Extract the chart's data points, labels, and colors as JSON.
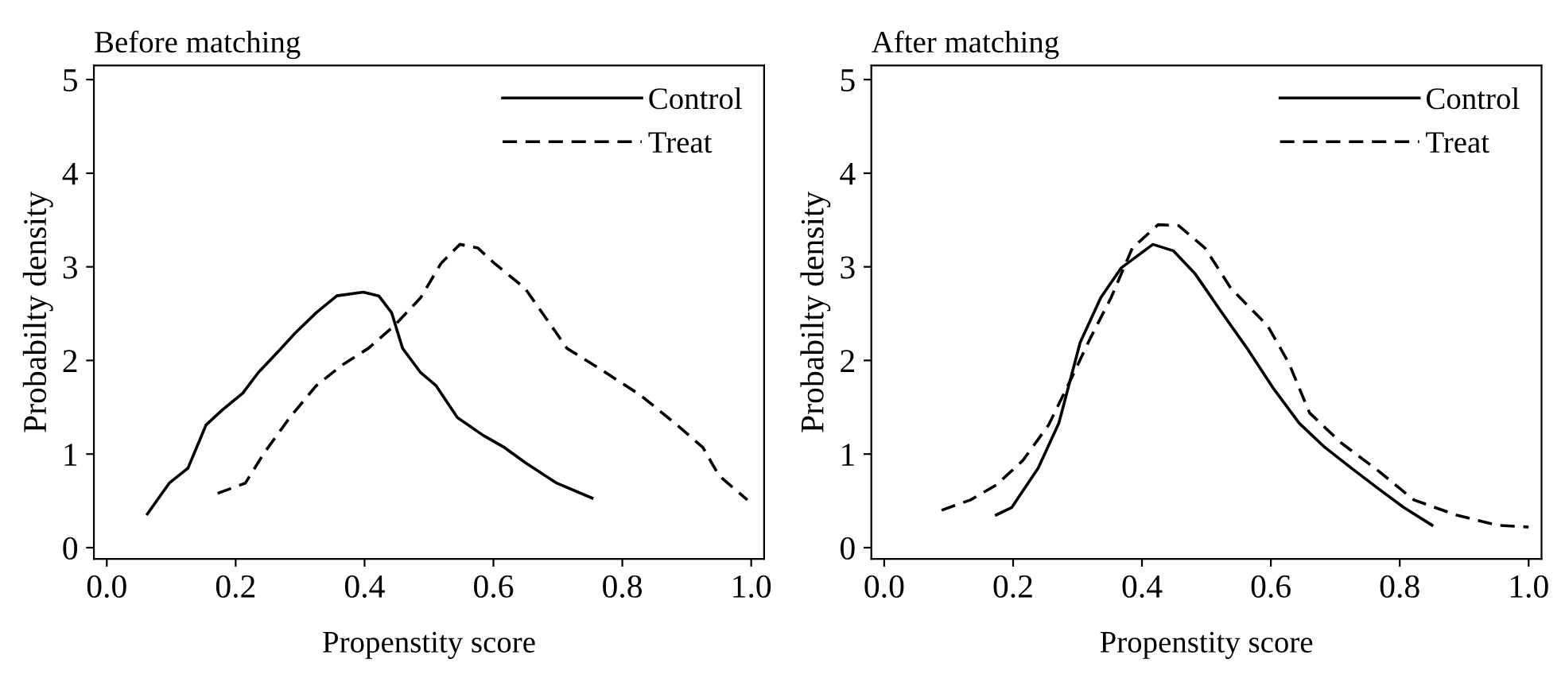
{
  "chart_data": [
    {
      "type": "line",
      "title": "Before matching",
      "xlabel": "Propenstity score",
      "ylabel": "Probabilty density",
      "xlim": [
        -0.02,
        1.02
      ],
      "ylim": [
        -0.12,
        5.15
      ],
      "xticks": [
        {
          "value": 0,
          "label": "0.0"
        },
        {
          "value": 0.2,
          "label": "0.2"
        },
        {
          "value": 0.4,
          "label": "0.4"
        },
        {
          "value": 0.6,
          "label": "0.6"
        },
        {
          "value": 0.8,
          "label": "0.8"
        },
        {
          "value": 1,
          "label": "1.0"
        }
      ],
      "yticks": [
        0,
        1,
        2,
        3,
        4,
        5
      ],
      "grid": false,
      "legend": "top right",
      "series": [
        {
          "name": "Control",
          "color": "#000000",
          "line_style": "solid",
          "x": [
            0.063,
            0.097,
            0.126,
            0.154,
            0.179,
            0.211,
            0.235,
            0.268,
            0.292,
            0.325,
            0.357,
            0.398,
            0.422,
            0.442,
            0.459,
            0.487,
            0.511,
            0.544,
            0.584,
            0.617,
            0.649,
            0.698,
            0.753
          ],
          "values": [
            0.36,
            0.69,
            0.85,
            1.31,
            1.47,
            1.65,
            1.87,
            2.11,
            2.29,
            2.51,
            2.69,
            2.73,
            2.69,
            2.51,
            2.13,
            1.87,
            1.73,
            1.39,
            1.2,
            1.07,
            0.91,
            0.69,
            0.53
          ]
        },
        {
          "name": "Treat",
          "color": "#000000",
          "line_style": "dashed",
          "x": [
            0.172,
            0.215,
            0.244,
            0.284,
            0.325,
            0.365,
            0.406,
            0.446,
            0.487,
            0.519,
            0.548,
            0.576,
            0.601,
            0.649,
            0.698,
            0.714,
            0.763,
            0.828,
            0.885,
            0.925,
            0.95,
            0.994
          ],
          "values": [
            0.58,
            0.69,
            1.01,
            1.39,
            1.73,
            1.95,
            2.13,
            2.37,
            2.67,
            3.04,
            3.24,
            3.2,
            3.04,
            2.77,
            2.29,
            2.13,
            1.92,
            1.63,
            1.31,
            1.07,
            0.77,
            0.51
          ]
        }
      ]
    },
    {
      "type": "line",
      "title": "After matching",
      "xlabel": "Propenstity score",
      "ylabel": "Probabilty density",
      "xlim": [
        -0.02,
        1.02
      ],
      "ylim": [
        -0.12,
        5.15
      ],
      "xticks": [
        {
          "value": 0,
          "label": "0.0"
        },
        {
          "value": 0.2,
          "label": "0.2"
        },
        {
          "value": 0.4,
          "label": "0.4"
        },
        {
          "value": 0.6,
          "label": "0.6"
        },
        {
          "value": 0.8,
          "label": "0.8"
        },
        {
          "value": 1,
          "label": "1.0"
        }
      ],
      "yticks": [
        0,
        1,
        2,
        3,
        4,
        5
      ],
      "grid": false,
      "legend": "top right",
      "series": [
        {
          "name": "Control",
          "color": "#000000",
          "line_style": "solid",
          "x": [
            0.174,
            0.198,
            0.239,
            0.271,
            0.304,
            0.336,
            0.368,
            0.417,
            0.449,
            0.482,
            0.522,
            0.563,
            0.603,
            0.644,
            0.684,
            0.725,
            0.765,
            0.806,
            0.85
          ],
          "values": [
            0.35,
            0.43,
            0.85,
            1.33,
            2.19,
            2.67,
            2.99,
            3.24,
            3.17,
            2.93,
            2.53,
            2.13,
            1.71,
            1.33,
            1.07,
            0.85,
            0.64,
            0.43,
            0.24
          ]
        },
        {
          "name": "Treat",
          "color": "#000000",
          "line_style": "dashed",
          "x": [
            0.089,
            0.134,
            0.174,
            0.215,
            0.255,
            0.287,
            0.32,
            0.352,
            0.385,
            0.425,
            0.457,
            0.498,
            0.538,
            0.595,
            0.628,
            0.66,
            0.709,
            0.765,
            0.822,
            0.887,
            0.951,
            1.0
          ],
          "values": [
            0.4,
            0.51,
            0.67,
            0.93,
            1.31,
            1.76,
            2.24,
            2.67,
            3.2,
            3.45,
            3.44,
            3.2,
            2.77,
            2.37,
            1.97,
            1.44,
            1.12,
            0.83,
            0.51,
            0.35,
            0.24,
            0.22
          ]
        }
      ]
    }
  ]
}
